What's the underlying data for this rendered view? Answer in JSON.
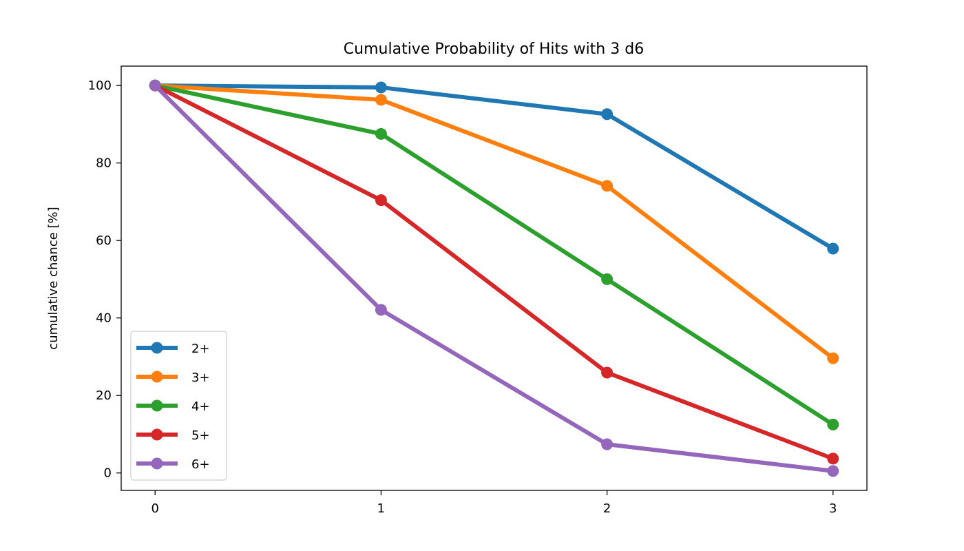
{
  "chart_data": {
    "type": "line",
    "title": "Cumulative Probability of Hits with 3 d6",
    "xlabel": "",
    "ylabel": "cumulative chance [%]",
    "x": [
      0,
      1,
      2,
      3
    ],
    "xticks": [
      "0",
      "1",
      "2",
      "3"
    ],
    "yticks": [
      "0",
      "20",
      "40",
      "60",
      "80",
      "100"
    ],
    "xlim": [
      -0.15,
      3.15
    ],
    "ylim": [
      -4.5,
      105
    ],
    "grid": false,
    "legend_position": "lower-left",
    "series": [
      {
        "name": "2+",
        "color": "#1f77b4",
        "values": [
          100,
          99.5,
          92.6,
          57.9
        ]
      },
      {
        "name": "3+",
        "color": "#ff7f0e",
        "values": [
          100,
          96.3,
          74.1,
          29.6
        ]
      },
      {
        "name": "4+",
        "color": "#2ca02c",
        "values": [
          100,
          87.5,
          50.0,
          12.5
        ]
      },
      {
        "name": "5+",
        "color": "#d62728",
        "values": [
          100,
          70.4,
          25.9,
          3.7
        ]
      },
      {
        "name": "6+",
        "color": "#9467bd",
        "values": [
          100,
          42.1,
          7.4,
          0.5
        ]
      }
    ]
  }
}
